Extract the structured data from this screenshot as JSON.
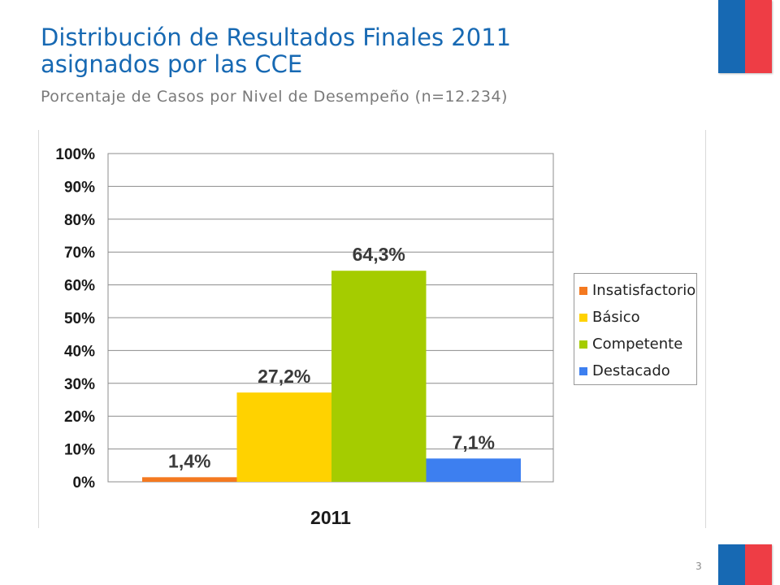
{
  "slide": {
    "title_line1": "Distribución de Resultados Finales 2011",
    "title_line2": "asignados por las CCE",
    "subtitle": "Porcentaje de Casos por Nivel de Desempeño (n=12.234)",
    "page_number": "3"
  },
  "colors": {
    "title": "#1769b3",
    "subtitle": "#7a7a7a",
    "flag_blue": "#1769b3",
    "flag_red": "#ee3d45"
  },
  "chart_data": {
    "type": "bar",
    "categories": [
      "2011"
    ],
    "xlabel": "",
    "ylabel": "",
    "ylim": [
      0,
      100
    ],
    "yticks": [
      "0%",
      "10%",
      "20%",
      "30%",
      "40%",
      "50%",
      "60%",
      "70%",
      "80%",
      "90%",
      "100%"
    ],
    "grid": true,
    "legend_position": "right",
    "series": [
      {
        "name": "Insatisfactorio",
        "values": [
          1.4
        ],
        "label": "1,4%",
        "color": "#f47920"
      },
      {
        "name": "Básico",
        "values": [
          27.2
        ],
        "label": "27,2%",
        "color": "#ffd200"
      },
      {
        "name": "Competente",
        "values": [
          64.3
        ],
        "label": "64,3%",
        "color": "#a5cc00"
      },
      {
        "name": "Destacado",
        "values": [
          7.1
        ],
        "label": "7,1%",
        "color": "#3d7ff0"
      }
    ]
  }
}
